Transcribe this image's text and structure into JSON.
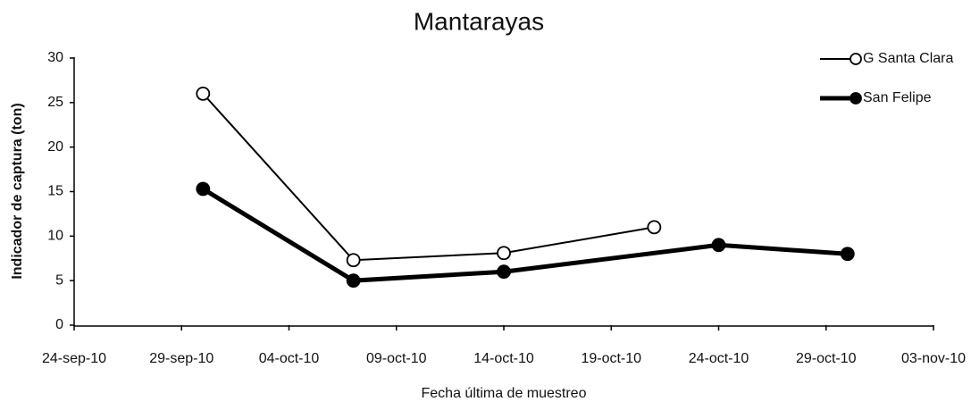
{
  "chart_data": {
    "type": "line",
    "title": "Mantarayas",
    "x_label": "Fecha última de muestreo",
    "y_label": "Indicador de captura (ton)",
    "series": [
      {
        "name": "G Santa Clara",
        "color": "#000000",
        "marker_fill": "#ffffff",
        "line_width": 2,
        "x": [
          "30-sep-10",
          "07-oct-10",
          "14-oct-10",
          "21-oct-10"
        ],
        "values": [
          26,
          7.3,
          8.1,
          11
        ]
      },
      {
        "name": "San Felipe",
        "color": "#000000",
        "marker_fill": "#000000",
        "line_width": 5,
        "x": [
          "30-sep-10",
          "07-oct-10",
          "14-oct-10",
          "24-oct-10",
          "30-oct-10"
        ],
        "values": [
          15.3,
          5,
          6,
          9,
          8
        ]
      }
    ],
    "xlim": [
      "24-sep-10",
      "03-nov-10"
    ],
    "xticks": [
      "24-sep-10",
      "29-sep-10",
      "04-oct-10",
      "09-oct-10",
      "14-oct-10",
      "19-oct-10",
      "24-oct-10",
      "29-oct-10",
      "03-nov-10"
    ],
    "ylim": [
      0,
      30
    ],
    "yticks": [
      0,
      5,
      10,
      15,
      20,
      25,
      30
    ],
    "grid": false,
    "legend": "top-right"
  }
}
